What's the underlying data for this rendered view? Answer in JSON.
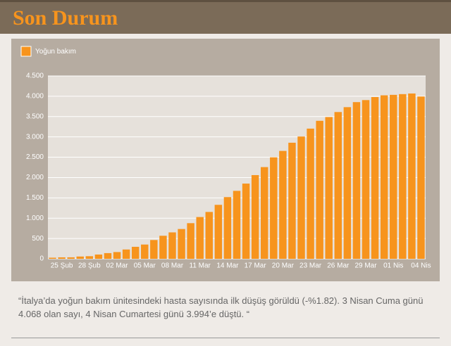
{
  "header": {
    "title": "Son Durum"
  },
  "chart_data": {
    "type": "bar",
    "legend": "Yoğun bakım",
    "color": "#f7941d",
    "categories": [
      null,
      "25 Şub",
      null,
      null,
      "28 Şub",
      null,
      null,
      "02 Mar",
      null,
      null,
      "05 Mar",
      null,
      null,
      "08 Mar",
      null,
      null,
      "11 Mar",
      null,
      null,
      "14 Mar",
      null,
      null,
      "17 Mar",
      null,
      null,
      "20 Mar",
      null,
      null,
      "23 Mar",
      null,
      null,
      "26 Mar",
      null,
      null,
      "29 Mar",
      null,
      null,
      "01 Nis",
      null,
      null,
      "04 Nis"
    ],
    "values": [
      27,
      35,
      36,
      56,
      64,
      105,
      140,
      166,
      229,
      295,
      351,
      462,
      567,
      650,
      733,
      877,
      1028,
      1153,
      1328,
      1518,
      1672,
      1851,
      2060,
      2257,
      2498,
      2655,
      2857,
      3009,
      3204,
      3396,
      3489,
      3612,
      3732,
      3856,
      3906,
      3981,
      4023,
      4035,
      4053,
      4068,
      3994
    ],
    "ylim": [
      0,
      4500
    ],
    "yticks": [
      0,
      500,
      {
        "value": 1000,
        "label": "1.000"
      },
      {
        "value": 1500,
        "label": "1.500"
      },
      {
        "value": 2000,
        "label": "2.000"
      },
      {
        "value": 2500,
        "label": "2.500"
      },
      {
        "value": 3000,
        "label": "3.000"
      },
      {
        "value": 3500,
        "label": "3.500"
      },
      {
        "value": 4000,
        "label": "4.000"
      },
      {
        "value": 4500,
        "label": "4.500"
      }
    ],
    "grid": true
  },
  "note": "“İtalya’da yoğun bakım ünitesindeki hasta sayısında ilk düşüş görüldü (-%1.82). 3 Nisan Cuma günü 4.068 olan sayı, 4 Nisan Cumartesi günü 3.994’e düştü. “"
}
